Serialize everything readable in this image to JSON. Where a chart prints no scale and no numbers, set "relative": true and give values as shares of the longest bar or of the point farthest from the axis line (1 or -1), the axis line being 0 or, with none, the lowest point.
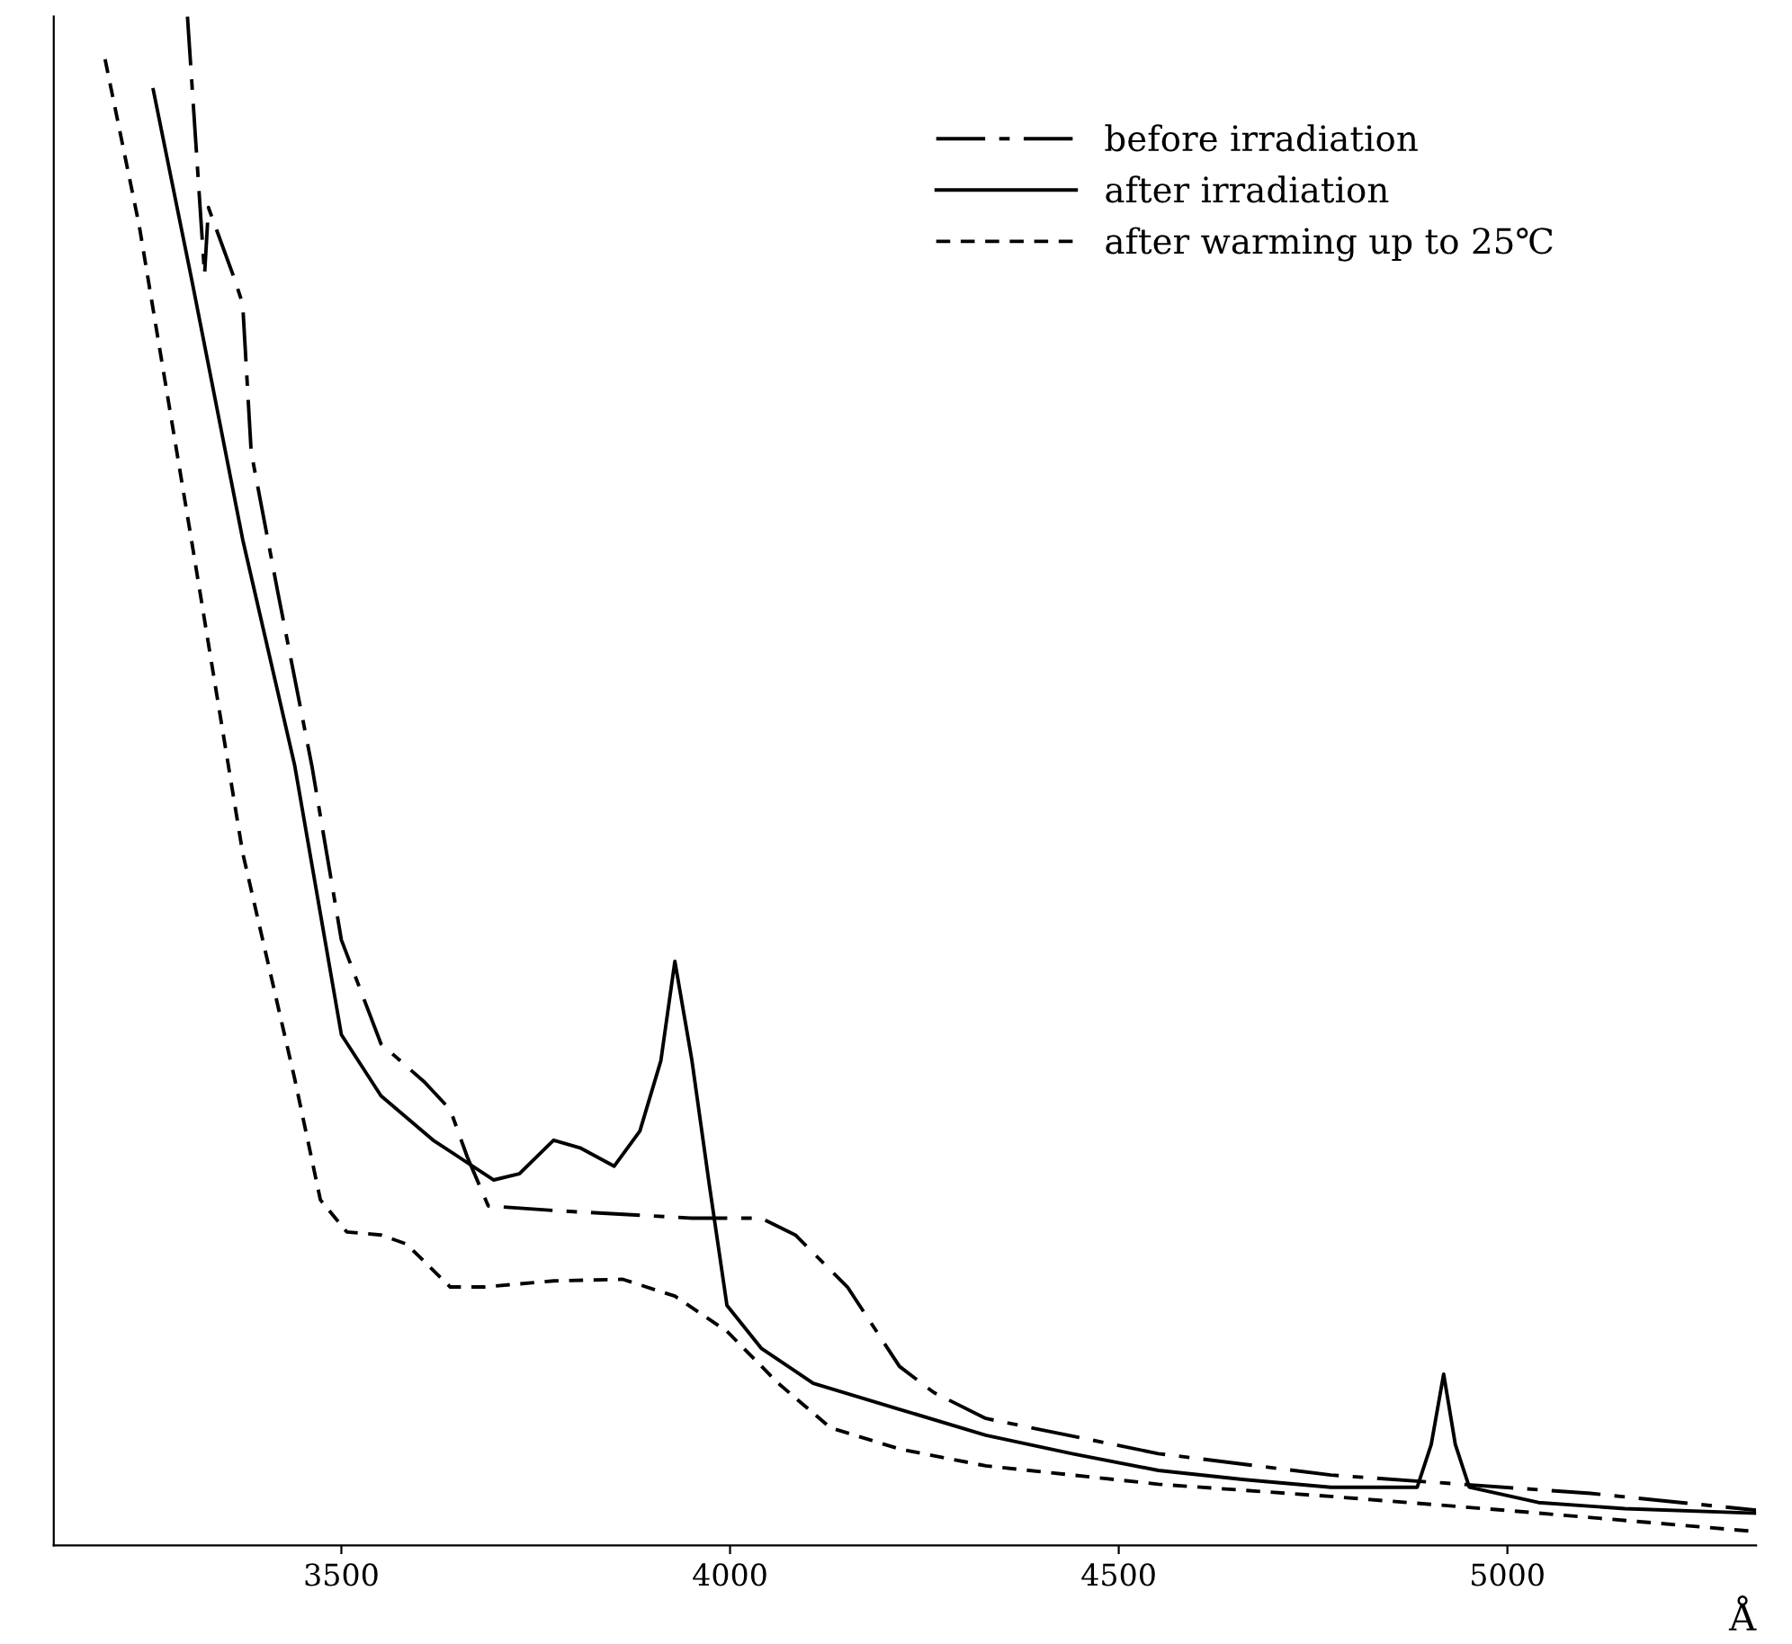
{
  "chart_data": {
    "type": "line",
    "relative": true,
    "xlabel": "Å",
    "xlim": [
      3130,
      5320
    ],
    "xticks": [
      3500,
      4000,
      4500,
      5000
    ],
    "grid": false,
    "legend": "top right",
    "marker": "none",
    "series": [
      {
        "name": "before irradiation",
        "color": "#000000",
        "line_style": "dashdot",
        "x": [
          3302,
          3324,
          3329,
          3362,
          3373,
          3384,
          3418,
          3462,
          3500,
          3551,
          3607,
          3640,
          3662,
          3689,
          3773,
          3951,
          4040,
          4084,
          4151,
          4218,
          4262,
          4329,
          4551,
          4773,
          5107,
          5320
        ],
        "values": [
          1.0,
          0.831,
          0.875,
          0.829,
          0.812,
          0.715,
          0.624,
          0.51,
          0.396,
          0.328,
          0.303,
          0.285,
          0.254,
          0.222,
          0.219,
          0.214,
          0.214,
          0.203,
          0.169,
          0.117,
          0.1,
          0.083,
          0.06,
          0.046,
          0.034,
          0.023
        ]
      },
      {
        "name": "after irradiation",
        "color": "#000000",
        "line_style": "solid",
        "x": [
          3258,
          3307,
          3373,
          3440,
          3500,
          3551,
          3618,
          3696,
          3729,
          3773,
          3807,
          3851,
          3884,
          3911,
          3929,
          3951,
          3973,
          3996,
          4040,
          4107,
          4218,
          4329,
          4440,
          4551,
          4662,
          4773,
          4884,
          4902,
          4918,
          4933,
          4951,
          5040,
          5151,
          5320
        ],
        "values": [
          0.952,
          0.829,
          0.658,
          0.51,
          0.334,
          0.294,
          0.265,
          0.239,
          0.243,
          0.265,
          0.26,
          0.248,
          0.271,
          0.317,
          0.382,
          0.317,
          0.237,
          0.157,
          0.129,
          0.106,
          0.089,
          0.072,
          0.06,
          0.049,
          0.043,
          0.038,
          0.038,
          0.066,
          0.112,
          0.066,
          0.038,
          0.028,
          0.024,
          0.021
        ]
      },
      {
        "name": "after warming up to 25℃",
        "color": "#000000",
        "line_style": "dashed",
        "x": [
          3196,
          3240,
          3307,
          3373,
          3440,
          3473,
          3507,
          3551,
          3584,
          3618,
          3640,
          3684,
          3773,
          3862,
          3929,
          3996,
          4062,
          4129,
          4218,
          4329,
          4551,
          4773,
          4996,
          5320
        ],
        "values": [
          0.972,
          0.863,
          0.658,
          0.453,
          0.305,
          0.226,
          0.205,
          0.203,
          0.197,
          0.18,
          0.169,
          0.169,
          0.173,
          0.174,
          0.163,
          0.14,
          0.106,
          0.077,
          0.063,
          0.052,
          0.04,
          0.032,
          0.023,
          0.009
        ]
      }
    ]
  }
}
